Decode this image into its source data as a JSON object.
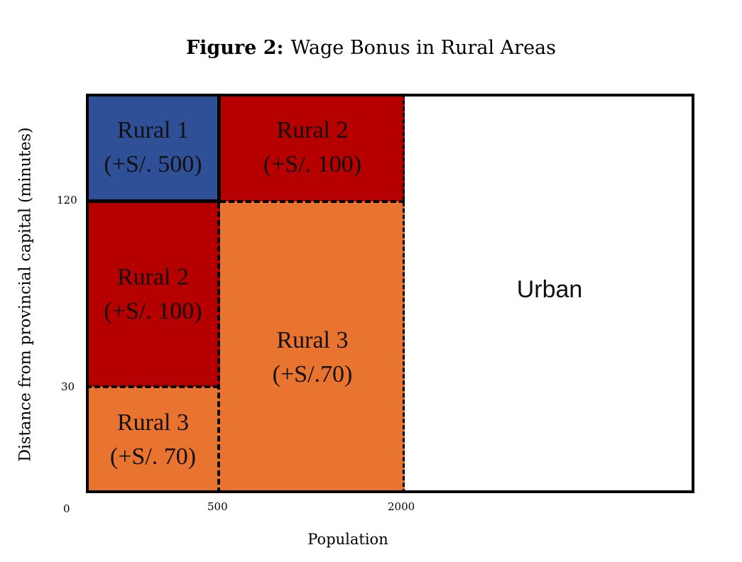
{
  "title": {
    "prefix": "Figure 2:",
    "text": "Wage Bonus in Rural Areas"
  },
  "axes": {
    "ylabel": "Distance from provincial capital (minutes)",
    "xlabel": "Population",
    "yticks": [
      "120",
      "30"
    ],
    "xticks": [
      "0",
      "500",
      "2000"
    ]
  },
  "regions": {
    "rural1_top": {
      "name": "Rural 1",
      "bonus": "(+S/. 500)",
      "color": "#2f4f96"
    },
    "rural2_top": {
      "name": "Rural 2",
      "bonus": "(+S/. 100)",
      "color": "#b60000"
    },
    "rural2_mid": {
      "name": "Rural 2",
      "bonus": "(+S/. 100)",
      "color": "#b60000"
    },
    "rural3_bottom": {
      "name": "Rural 3",
      "bonus": "(+S/. 70)",
      "color": "#e97430"
    },
    "rural3_center": {
      "name": "Rural 3",
      "bonus": "(+S/.70)",
      "color": "#e97430"
    },
    "urban": {
      "name": "Urban",
      "color": "#ffffff"
    }
  }
}
